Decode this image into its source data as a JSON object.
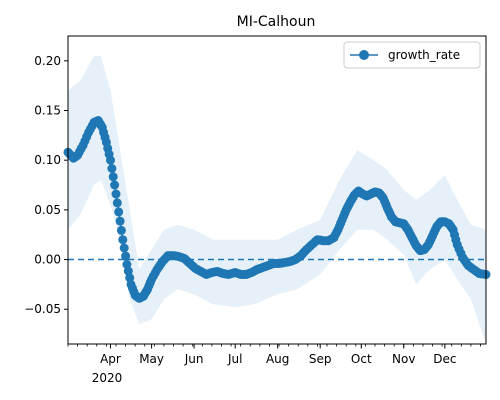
{
  "chart_data": {
    "type": "line",
    "title": "MI-Calhoun",
    "xlabel": "",
    "ylabel": "",
    "x_range": [
      "2020-03-01",
      "2020-12-31"
    ],
    "ylim": [
      -0.085,
      0.225
    ],
    "y_ticks": [
      -0.05,
      0.0,
      0.05,
      0.1,
      0.15,
      0.2
    ],
    "y_tick_labels": [
      "−0.05",
      "0.00",
      "0.05",
      "0.10",
      "0.15",
      "0.20"
    ],
    "x_ticks": [
      {
        "date": "2020-04-01",
        "label": "Apr"
      },
      {
        "date": "2020-05-01",
        "label": "May"
      },
      {
        "date": "2020-06-01",
        "label": "Jun"
      },
      {
        "date": "2020-07-01",
        "label": "Jul"
      },
      {
        "date": "2020-08-01",
        "label": "Aug"
      },
      {
        "date": "2020-09-01",
        "label": "Sep"
      },
      {
        "date": "2020-10-01",
        "label": "Oct"
      },
      {
        "date": "2020-11-01",
        "label": "Nov"
      },
      {
        "date": "2020-12-01",
        "label": "Dec"
      }
    ],
    "year_label": "2020",
    "reference_line": {
      "y": 0.0,
      "style": "dashed"
    },
    "legend": {
      "position": "top-right",
      "entries": [
        "growth_rate"
      ]
    },
    "grid": false,
    "colors": {
      "series": "#1f77b4",
      "band": "#dce9f5"
    },
    "series": [
      {
        "name": "growth_rate",
        "points": [
          [
            "2020-03-01",
            0.108
          ],
          [
            "2020-03-05",
            0.102
          ],
          [
            "2020-03-08",
            0.105
          ],
          [
            "2020-03-12",
            0.115
          ],
          [
            "2020-03-16",
            0.128
          ],
          [
            "2020-03-20",
            0.138
          ],
          [
            "2020-03-23",
            0.14
          ],
          [
            "2020-03-26",
            0.133
          ],
          [
            "2020-03-29",
            0.118
          ],
          [
            "2020-04-01",
            0.1
          ],
          [
            "2020-04-04",
            0.075
          ],
          [
            "2020-04-07",
            0.048
          ],
          [
            "2020-04-10",
            0.02
          ],
          [
            "2020-04-13",
            -0.005
          ],
          [
            "2020-04-16",
            -0.025
          ],
          [
            "2020-04-19",
            -0.036
          ],
          [
            "2020-04-22",
            -0.039
          ],
          [
            "2020-04-25",
            -0.037
          ],
          [
            "2020-04-28",
            -0.03
          ],
          [
            "2020-05-01",
            -0.02
          ],
          [
            "2020-05-05",
            -0.01
          ],
          [
            "2020-05-09",
            -0.002
          ],
          [
            "2020-05-13",
            0.004
          ],
          [
            "2020-05-17",
            0.004
          ],
          [
            "2020-05-21",
            0.003
          ],
          [
            "2020-05-25",
            0.001
          ],
          [
            "2020-05-29",
            -0.004
          ],
          [
            "2020-06-02",
            -0.009
          ],
          [
            "2020-06-06",
            -0.012
          ],
          [
            "2020-06-10",
            -0.015
          ],
          [
            "2020-06-14",
            -0.013
          ],
          [
            "2020-06-18",
            -0.012
          ],
          [
            "2020-06-22",
            -0.014
          ],
          [
            "2020-06-26",
            -0.015
          ],
          [
            "2020-07-01",
            -0.013
          ],
          [
            "2020-07-05",
            -0.015
          ],
          [
            "2020-07-09",
            -0.015
          ],
          [
            "2020-07-13",
            -0.013
          ],
          [
            "2020-07-17",
            -0.01
          ],
          [
            "2020-07-21",
            -0.008
          ],
          [
            "2020-07-25",
            -0.006
          ],
          [
            "2020-07-29",
            -0.004
          ],
          [
            "2020-08-02",
            -0.004
          ],
          [
            "2020-08-06",
            -0.003
          ],
          [
            "2020-08-10",
            -0.002
          ],
          [
            "2020-08-14",
            0.0
          ],
          [
            "2020-08-18",
            0.004
          ],
          [
            "2020-08-22",
            0.01
          ],
          [
            "2020-08-26",
            0.015
          ],
          [
            "2020-08-30",
            0.02
          ],
          [
            "2020-09-03",
            0.019
          ],
          [
            "2020-09-07",
            0.019
          ],
          [
            "2020-09-11",
            0.022
          ],
          [
            "2020-09-14",
            0.03
          ],
          [
            "2020-09-17",
            0.04
          ],
          [
            "2020-09-20",
            0.05
          ],
          [
            "2020-09-23",
            0.058
          ],
          [
            "2020-09-26",
            0.065
          ],
          [
            "2020-09-29",
            0.069
          ],
          [
            "2020-10-02",
            0.066
          ],
          [
            "2020-10-05",
            0.064
          ],
          [
            "2020-10-08",
            0.066
          ],
          [
            "2020-10-11",
            0.068
          ],
          [
            "2020-10-14",
            0.067
          ],
          [
            "2020-10-17",
            0.062
          ],
          [
            "2020-10-20",
            0.052
          ],
          [
            "2020-10-23",
            0.043
          ],
          [
            "2020-10-26",
            0.038
          ],
          [
            "2020-10-29",
            0.037
          ],
          [
            "2020-11-01",
            0.036
          ],
          [
            "2020-11-04",
            0.03
          ],
          [
            "2020-11-07",
            0.022
          ],
          [
            "2020-11-10",
            0.014
          ],
          [
            "2020-11-13",
            0.009
          ],
          [
            "2020-11-16",
            0.01
          ],
          [
            "2020-11-19",
            0.015
          ],
          [
            "2020-11-22",
            0.024
          ],
          [
            "2020-11-25",
            0.033
          ],
          [
            "2020-11-28",
            0.038
          ],
          [
            "2020-12-01",
            0.038
          ],
          [
            "2020-12-04",
            0.036
          ],
          [
            "2020-12-07",
            0.03
          ],
          [
            "2020-12-10",
            0.015
          ],
          [
            "2020-12-14",
            0.002
          ],
          [
            "2020-12-18",
            -0.006
          ],
          [
            "2020-12-22",
            -0.01
          ],
          [
            "2020-12-26",
            -0.014
          ],
          [
            "2020-12-31",
            -0.015
          ]
        ],
        "band_upper": [
          [
            "2020-03-01",
            0.17
          ],
          [
            "2020-03-10",
            0.18
          ],
          [
            "2020-03-20",
            0.205
          ],
          [
            "2020-03-25",
            0.205
          ],
          [
            "2020-04-01",
            0.17
          ],
          [
            "2020-04-08",
            0.11
          ],
          [
            "2020-04-15",
            0.05
          ],
          [
            "2020-04-22",
            -0.01
          ],
          [
            "2020-05-01",
            0.01
          ],
          [
            "2020-05-10",
            0.03
          ],
          [
            "2020-05-20",
            0.035
          ],
          [
            "2020-06-01",
            0.03
          ],
          [
            "2020-06-15",
            0.02
          ],
          [
            "2020-07-01",
            0.02
          ],
          [
            "2020-07-15",
            0.02
          ],
          [
            "2020-08-01",
            0.02
          ],
          [
            "2020-08-15",
            0.03
          ],
          [
            "2020-09-01",
            0.04
          ],
          [
            "2020-09-15",
            0.08
          ],
          [
            "2020-09-28",
            0.11
          ],
          [
            "2020-10-10",
            0.1
          ],
          [
            "2020-10-20",
            0.09
          ],
          [
            "2020-11-01",
            0.07
          ],
          [
            "2020-11-10",
            0.06
          ],
          [
            "2020-11-20",
            0.07
          ],
          [
            "2020-12-01",
            0.085
          ],
          [
            "2020-12-10",
            0.06
          ],
          [
            "2020-12-20",
            0.035
          ],
          [
            "2020-12-31",
            0.03
          ]
        ],
        "band_lower": [
          [
            "2020-03-01",
            0.03
          ],
          [
            "2020-03-10",
            0.045
          ],
          [
            "2020-03-20",
            0.075
          ],
          [
            "2020-03-25",
            0.08
          ],
          [
            "2020-04-01",
            0.055
          ],
          [
            "2020-04-08",
            0.02
          ],
          [
            "2020-04-15",
            -0.04
          ],
          [
            "2020-04-22",
            -0.065
          ],
          [
            "2020-05-01",
            -0.06
          ],
          [
            "2020-05-10",
            -0.04
          ],
          [
            "2020-05-20",
            -0.03
          ],
          [
            "2020-06-01",
            -0.035
          ],
          [
            "2020-06-15",
            -0.045
          ],
          [
            "2020-07-01",
            -0.048
          ],
          [
            "2020-07-15",
            -0.045
          ],
          [
            "2020-08-01",
            -0.035
          ],
          [
            "2020-08-15",
            -0.03
          ],
          [
            "2020-09-01",
            -0.015
          ],
          [
            "2020-09-15",
            0.01
          ],
          [
            "2020-09-28",
            0.03
          ],
          [
            "2020-10-10",
            0.03
          ],
          [
            "2020-10-20",
            0.02
          ],
          [
            "2020-11-01",
            0.005
          ],
          [
            "2020-11-10",
            -0.025
          ],
          [
            "2020-11-20",
            -0.01
          ],
          [
            "2020-12-01",
            0.0
          ],
          [
            "2020-12-10",
            -0.02
          ],
          [
            "2020-12-20",
            -0.04
          ],
          [
            "2020-12-31",
            -0.085
          ]
        ]
      }
    ]
  }
}
